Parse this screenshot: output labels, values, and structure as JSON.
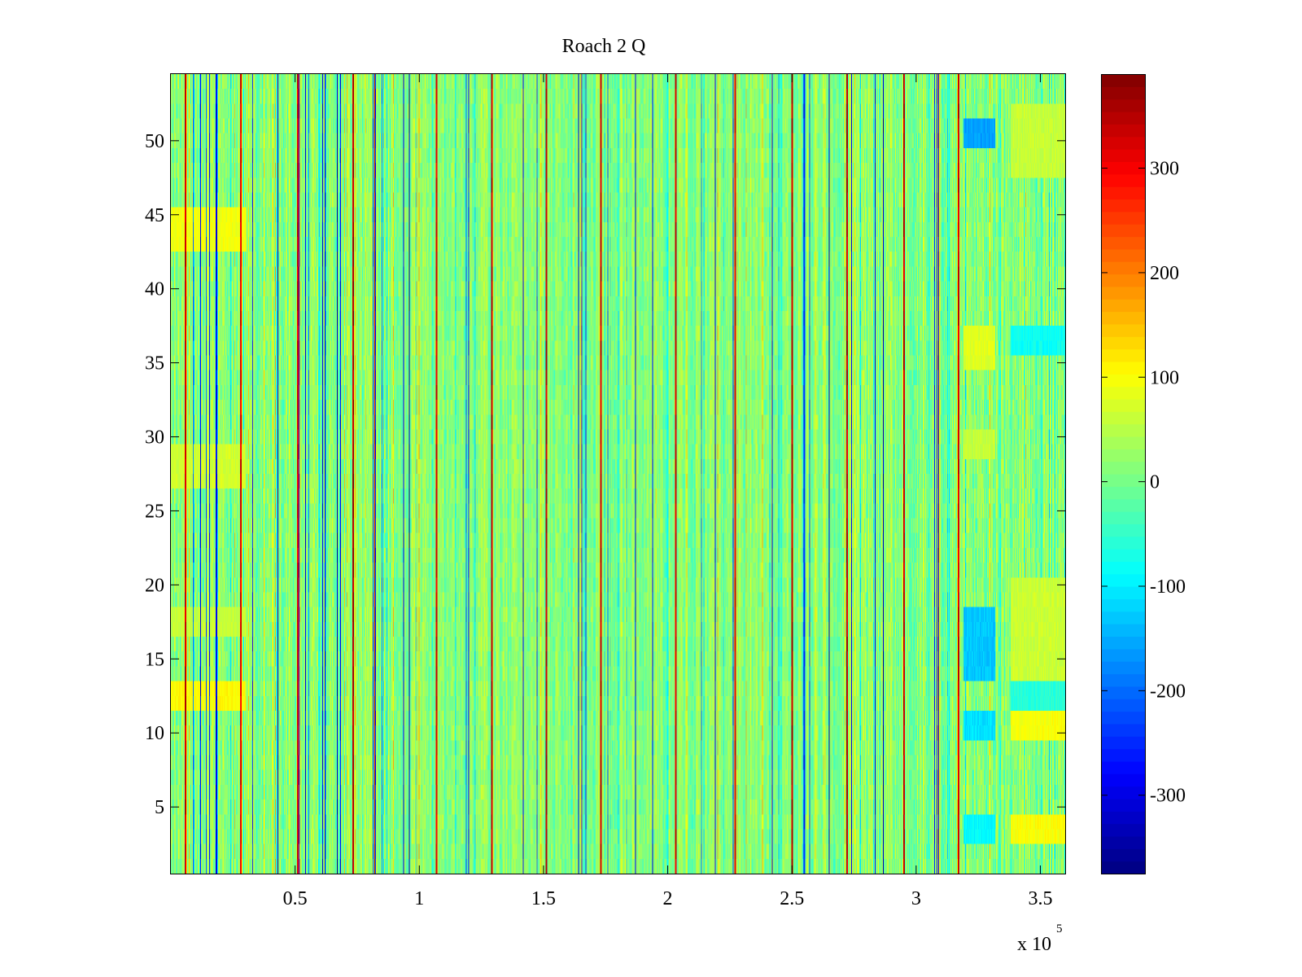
{
  "chart_data": {
    "type": "heatmap",
    "title": "Roach 2 Q",
    "xlabel": "",
    "ylabel": "",
    "xlim": [
      0,
      360000
    ],
    "ylim": [
      0.5,
      54.5
    ],
    "x_ticks": [
      50000,
      100000,
      150000,
      200000,
      250000,
      300000,
      350000
    ],
    "x_tick_labels": [
      "0.5",
      "1",
      "1.5",
      "2",
      "2.5",
      "3",
      "3.5"
    ],
    "x_exponent_label": {
      "base": "x 10",
      "exponent": "5"
    },
    "y_ticks": [
      5,
      10,
      15,
      20,
      25,
      30,
      35,
      40,
      45,
      50
    ],
    "y_tick_labels": [
      "5",
      "10",
      "15",
      "20",
      "25",
      "30",
      "35",
      "40",
      "45",
      "50"
    ],
    "rows": 54,
    "colormap": "jet",
    "colorbar": {
      "range": [
        -375,
        390
      ],
      "ticks": [
        -300,
        -200,
        -100,
        0,
        100,
        200,
        300
      ],
      "tick_labels": [
        "-300",
        "-200",
        "-100",
        "0",
        "100",
        "200",
        "300"
      ]
    },
    "background_value_range": [
      -30,
      60
    ],
    "strong_positive_stripes_x": [
      5700,
      28000,
      51000,
      73000,
      82000,
      107000,
      129000,
      151000,
      173000,
      203000,
      227000,
      250000,
      272000,
      295000,
      317000
    ],
    "strong_negative_stripes_x": [
      12000,
      18000,
      43000,
      62000,
      67000,
      96000,
      119000,
      142000,
      164000,
      187000,
      219000,
      242000,
      265000,
      287000,
      309000
    ],
    "patches": [
      {
        "x": [
          0,
          30000
        ],
        "y": [
          43,
          46
        ],
        "value": 95
      },
      {
        "x": [
          0,
          30000
        ],
        "y": [
          12,
          14
        ],
        "value": 105
      },
      {
        "x": [
          0,
          30000
        ],
        "y": [
          27,
          30
        ],
        "value": 70
      },
      {
        "x": [
          0,
          30000
        ],
        "y": [
          17,
          19
        ],
        "value": 60
      },
      {
        "x": [
          319000,
          332000
        ],
        "y": [
          50,
          52
        ],
        "value": -160
      },
      {
        "x": [
          319000,
          332000
        ],
        "y": [
          14,
          19
        ],
        "value": -130
      },
      {
        "x": [
          319000,
          332000
        ],
        "y": [
          10,
          12
        ],
        "value": -110
      },
      {
        "x": [
          319000,
          332000
        ],
        "y": [
          3,
          5
        ],
        "value": -90
      },
      {
        "x": [
          319000,
          332000
        ],
        "y": [
          35,
          38
        ],
        "value": 80
      },
      {
        "x": [
          319000,
          332000
        ],
        "y": [
          29,
          31
        ],
        "value": 60
      },
      {
        "x": [
          338000,
          360000
        ],
        "y": [
          10,
          12
        ],
        "value": 100
      },
      {
        "x": [
          338000,
          360000
        ],
        "y": [
          3,
          5
        ],
        "value": 100
      },
      {
        "x": [
          338000,
          360000
        ],
        "y": [
          14,
          21
        ],
        "value": 65
      },
      {
        "x": [
          338000,
          360000
        ],
        "y": [
          48,
          53
        ],
        "value": 60
      },
      {
        "x": [
          338000,
          360000
        ],
        "y": [
          36,
          38
        ],
        "value": -80
      },
      {
        "x": [
          338000,
          360000
        ],
        "y": [
          12,
          14
        ],
        "value": -60
      }
    ]
  }
}
